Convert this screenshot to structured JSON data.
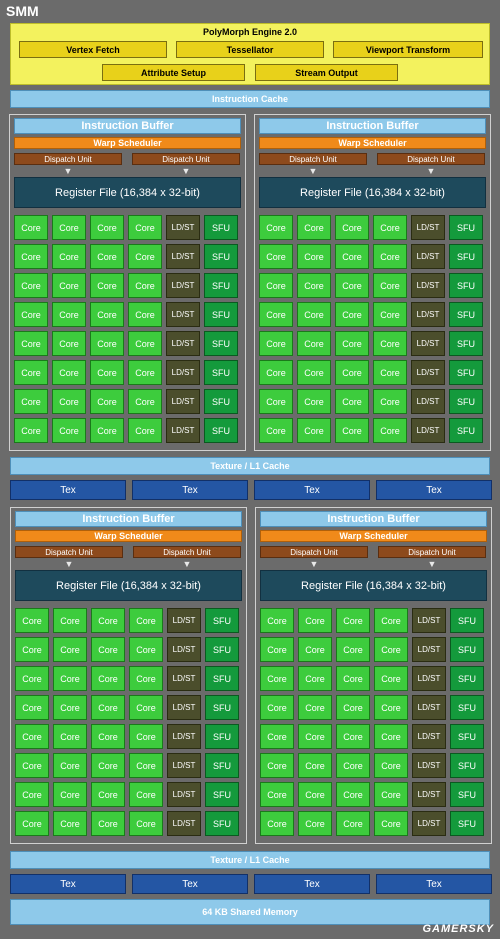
{
  "smm_title": "SMM",
  "polymorph": {
    "title": "PolyMorph Engine 2.0",
    "units": [
      "Vertex Fetch",
      "Tessellator",
      "Viewport Transform",
      "Attribute Setup",
      "Stream Output"
    ]
  },
  "instruction_cache": "Instruction Cache",
  "quad": {
    "instruction_buffer": "Instruction Buffer",
    "warp_scheduler": "Warp Scheduler",
    "dispatch_unit": "Dispatch Unit",
    "register_file": "Register File (16,384 x 32-bit)",
    "core": "Core",
    "ldst": "LD/ST",
    "sfu": "SFU",
    "rows": 8
  },
  "texture_cache": "Texture / L1 Cache",
  "tex": "Tex",
  "shared_memory": "64 KB Shared Memory",
  "watermark": "GAMERSKY",
  "colors": {
    "background": "#6b6b6b",
    "polymorph": "#f3f25e",
    "cache": "#8ec9ea",
    "warp_scheduler": "#f08a1a",
    "dispatch_unit": "#8d4a1c",
    "register_file": "#1e4a5c",
    "core": "#3dcc3d",
    "ldst": "#4b4e2c",
    "sfu": "#149a3c",
    "tex": "#2456a4"
  }
}
